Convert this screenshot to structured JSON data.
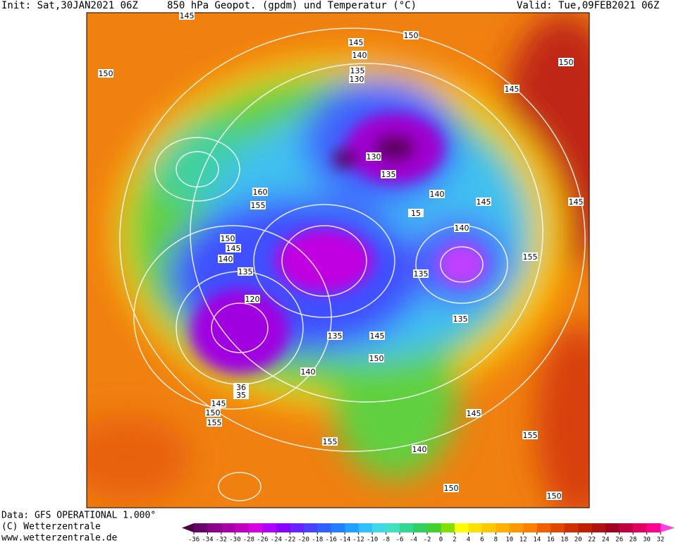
{
  "header": {
    "init": "Init: Sat,30JAN2021 06Z",
    "title": "850 hPa Geopot. (gpdm) und Temperatur (°C)",
    "valid": "Valid: Tue,09FEB2021 06Z"
  },
  "footer": {
    "data": "Data: GFS OPERATIONAL 1.000°",
    "copyright": "(C) Wetterzentrale",
    "url": "www.wetterzentrale.de"
  },
  "contour_labels": [
    "145",
    "150",
    "145",
    "140",
    "135",
    "130",
    "150",
    "150",
    "145",
    "130",
    "135",
    "140",
    "160",
    "155",
    "145",
    "145",
    "15",
    "140",
    "150",
    "145",
    "140",
    "135",
    "155",
    "135",
    "120",
    "135",
    "135",
    "145",
    "150",
    "140",
    "36",
    "35",
    "145",
    "150",
    "155",
    "155",
    "145",
    "155",
    "140",
    "150",
    "150"
  ],
  "colorbar": {
    "labels": [
      -36,
      -34,
      -32,
      -30,
      -28,
      -26,
      -24,
      -22,
      -20,
      -18,
      -16,
      -14,
      -12,
      -10,
      -8,
      -6,
      -4,
      -2,
      0,
      2,
      4,
      6,
      8,
      10,
      12,
      14,
      16,
      18,
      20,
      22,
      24,
      26,
      28,
      30,
      32
    ],
    "colors": [
      "#4b0040",
      "#6a006a",
      "#8a008a",
      "#a800a8",
      "#c000c0",
      "#d800e0",
      "#b000ff",
      "#8a00ff",
      "#6a20ff",
      "#4a40ff",
      "#3060ff",
      "#2080ff",
      "#20a0ff",
      "#30c0ff",
      "#40d8e8",
      "#40e0c0",
      "#30d890",
      "#30d060",
      "#40d030",
      "#80e000",
      "#ffff00",
      "#ffe000",
      "#ffc800",
      "#ffb000",
      "#ff9800",
      "#ff8000",
      "#f06000",
      "#e04800",
      "#d03000",
      "#c02000",
      "#b01010",
      "#a00020",
      "#c00040",
      "#e00060",
      "#ff0090",
      "#ff40e0"
    ]
  }
}
